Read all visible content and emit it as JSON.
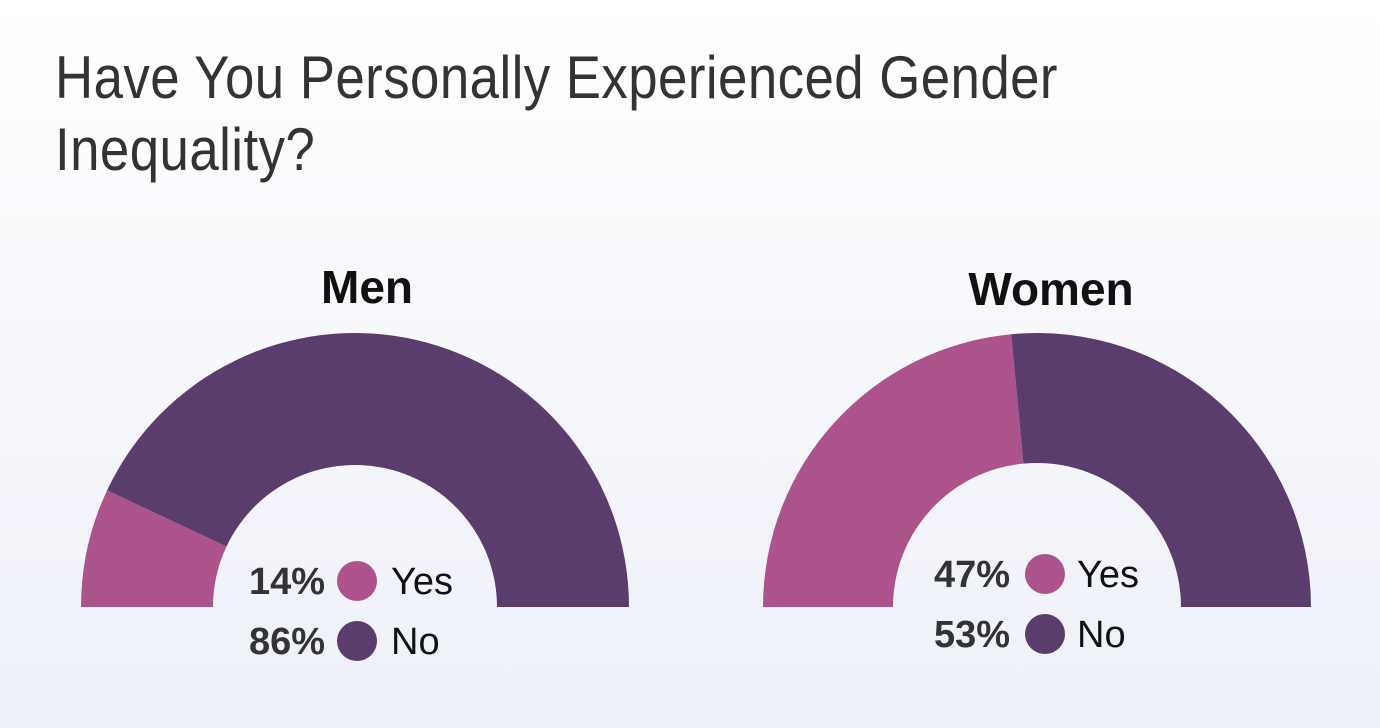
{
  "chart_data": [
    {
      "type": "pie",
      "title": "Men",
      "categories": [
        "Yes",
        "No"
      ],
      "values": [
        14,
        86
      ],
      "unit": "%",
      "colors": [
        "#ad538c",
        "#5a3c6d"
      ],
      "style": "semi-donut",
      "legend": "center"
    },
    {
      "type": "pie",
      "title": "Women",
      "categories": [
        "Yes",
        "No"
      ],
      "values": [
        47,
        53
      ],
      "unit": "%",
      "colors": [
        "#ad538c",
        "#5a3c6d"
      ],
      "style": "semi-donut",
      "legend": "center"
    }
  ],
  "page_title": "Have You Personally Experienced Gender Inequality?"
}
